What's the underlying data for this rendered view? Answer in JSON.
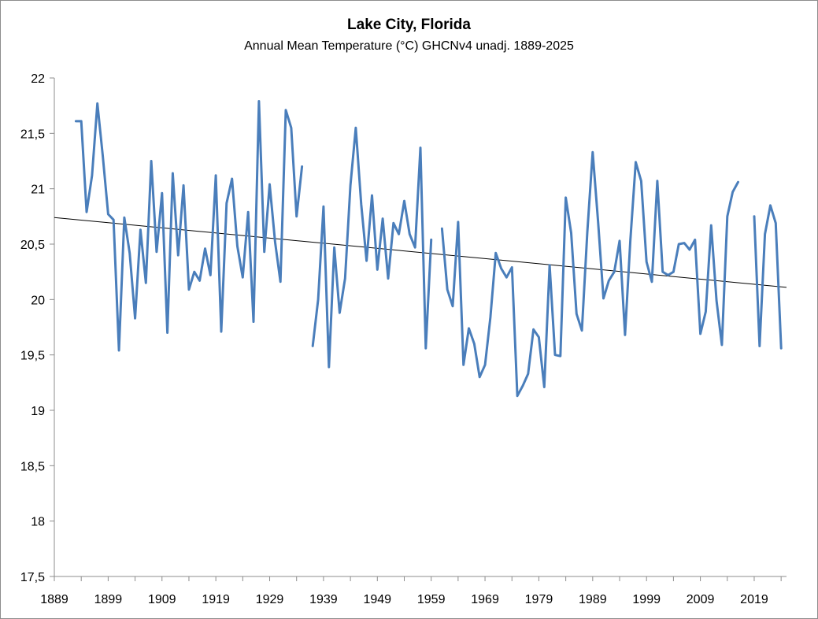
{
  "chart_data": {
    "type": "line",
    "title": "Lake City, Florida",
    "subtitle": "Annual Mean Temperature (°C) GHCNv4 unadj. 1889-2025",
    "xlabel": "",
    "ylabel": "",
    "xlim": [
      1889,
      2025
    ],
    "ylim": [
      17.5,
      22
    ],
    "y_ticks": [
      "17,5",
      "18",
      "18,5",
      "19",
      "19,5",
      "20",
      "20,5",
      "21",
      "21,5",
      "22"
    ],
    "y_tick_values": [
      17.5,
      18,
      18.5,
      19,
      19.5,
      20,
      20.5,
      21,
      21.5,
      22
    ],
    "x_ticks": [
      "1889",
      "1899",
      "1909",
      "1919",
      "1929",
      "1939",
      "1949",
      "1959",
      "1969",
      "1979",
      "1989",
      "1999",
      "2009",
      "2019"
    ],
    "x_tick_values": [
      1889,
      1899,
      1909,
      1919,
      1929,
      1939,
      1949,
      1959,
      1969,
      1979,
      1989,
      1999,
      2009,
      2019
    ],
    "grid": false,
    "legend": "none",
    "series": [
      {
        "color": "#4a7ebb",
        "x": [
          1893,
          1894,
          1895,
          1896,
          1897,
          1898,
          1899,
          1900,
          1901,
          1902,
          1903,
          1904,
          1905,
          1906,
          1907,
          1908,
          1909,
          1910,
          1911,
          1912,
          1913,
          1914,
          1915,
          1916,
          1917,
          1918,
          1919,
          1920,
          1921,
          1922,
          1923,
          1924,
          1925,
          1926,
          1927,
          1928,
          1929,
          1930,
          1931,
          1932,
          1933,
          1934,
          1935,
          null,
          1937,
          1938,
          1939,
          1940,
          1941,
          1942,
          1943,
          1944,
          1945,
          1946,
          1947,
          1948,
          1949,
          1950,
          1951,
          1952,
          1953,
          1954,
          1955,
          1956,
          1957,
          1958,
          1959,
          null,
          1961,
          1962,
          1963,
          1964,
          1965,
          1966,
          1967,
          1968,
          1969,
          1970,
          1971,
          1972,
          1973,
          1974,
          1975,
          1976,
          1977,
          1978,
          1979,
          1980,
          1981,
          1982,
          1983,
          1984,
          1985,
          1986,
          1987,
          1988,
          1989,
          1990,
          1991,
          1992,
          1993,
          1994,
          1995,
          1996,
          1997,
          1998,
          1999,
          2000,
          2001,
          2002,
          2003,
          2004,
          2005,
          2006,
          2007,
          2008,
          2009,
          2010,
          2011,
          2012,
          2013,
          2014,
          2015,
          2016,
          null,
          2019,
          2020,
          2021,
          2022,
          2023,
          2024
        ],
        "y": [
          21.61,
          21.61,
          20.79,
          21.12,
          21.77,
          21.3,
          20.77,
          20.72,
          19.54,
          20.74,
          20.42,
          19.83,
          20.63,
          20.15,
          21.25,
          20.43,
          20.96,
          19.7,
          21.14,
          20.4,
          21.03,
          20.09,
          20.25,
          20.17,
          20.46,
          20.22,
          21.12,
          19.71,
          20.87,
          21.09,
          20.48,
          20.2,
          20.79,
          19.8,
          21.79,
          20.43,
          21.04,
          20.52,
          20.16,
          21.71,
          21.55,
          20.75,
          21.2,
          null,
          19.58,
          20.0,
          20.84,
          19.39,
          20.47,
          19.88,
          20.19,
          21.03,
          21.55,
          20.86,
          20.35,
          20.94,
          20.27,
          20.73,
          20.19,
          20.69,
          20.59,
          20.89,
          20.59,
          20.47,
          21.37,
          19.56,
          20.54,
          null,
          20.64,
          20.09,
          19.94,
          20.7,
          19.41,
          19.74,
          19.6,
          19.3,
          19.41,
          19.84,
          20.42,
          20.28,
          20.2,
          20.29,
          19.13,
          19.22,
          19.33,
          19.73,
          19.66,
          19.21,
          20.31,
          19.5,
          19.49,
          20.92,
          20.6,
          19.87,
          19.72,
          20.61,
          21.33,
          20.7,
          20.01,
          20.17,
          20.25,
          20.53,
          19.68,
          20.54,
          21.24,
          21.07,
          20.34,
          20.16,
          21.07,
          20.25,
          20.22,
          20.25,
          20.5,
          20.51,
          20.45,
          20.54,
          19.69,
          19.89,
          20.67,
          19.99,
          19.59,
          20.75,
          20.97,
          21.06,
          null,
          20.75,
          19.58,
          20.59,
          20.85,
          20.69,
          19.56
        ]
      }
    ],
    "trendline": {
      "color": "#000000",
      "x": [
        1889,
        2025
      ],
      "y": [
        20.74,
        20.11
      ]
    }
  }
}
